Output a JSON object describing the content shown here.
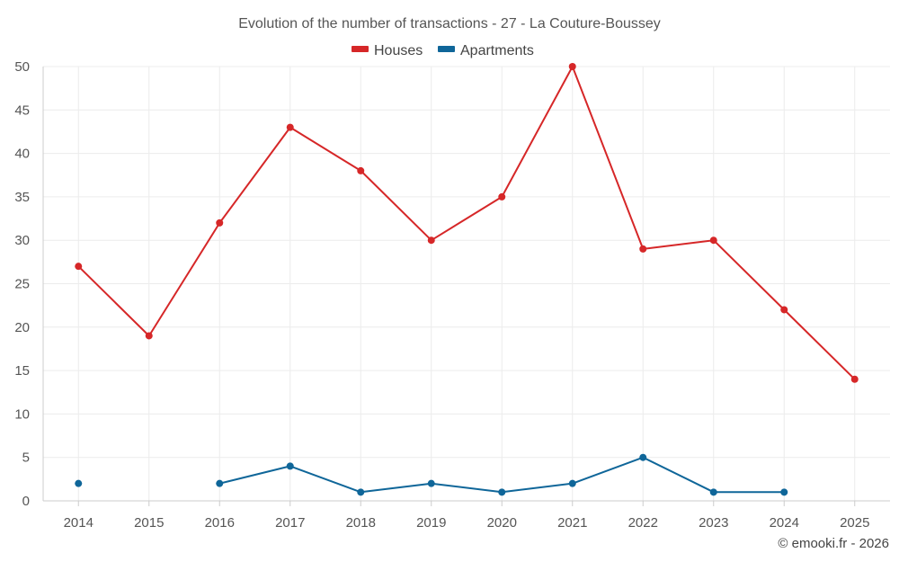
{
  "chart_data": {
    "type": "line",
    "title": "Evolution of the number of transactions - 27 - La Couture-Boussey",
    "categories": [
      "2014",
      "2015",
      "2016",
      "2017",
      "2018",
      "2019",
      "2020",
      "2021",
      "2022",
      "2023",
      "2024",
      "2025"
    ],
    "series": [
      {
        "name": "Houses",
        "color": "#d62728",
        "values": [
          27,
          19,
          32,
          43,
          38,
          30,
          35,
          50,
          29,
          30,
          22,
          14
        ]
      },
      {
        "name": "Apartments",
        "color": "#0f6699",
        "values": [
          2,
          null,
          2,
          4,
          1,
          2,
          1,
          2,
          5,
          1,
          1,
          null
        ]
      }
    ],
    "ylim": [
      0,
      50
    ],
    "yticks": [
      "0",
      "5",
      "10",
      "15",
      "20",
      "25",
      "30",
      "35",
      "40",
      "45",
      "50"
    ],
    "grid": true,
    "legend_position": "top-center",
    "xlabel": "",
    "ylabel": ""
  },
  "footer": "© emooki.fr - 2026"
}
